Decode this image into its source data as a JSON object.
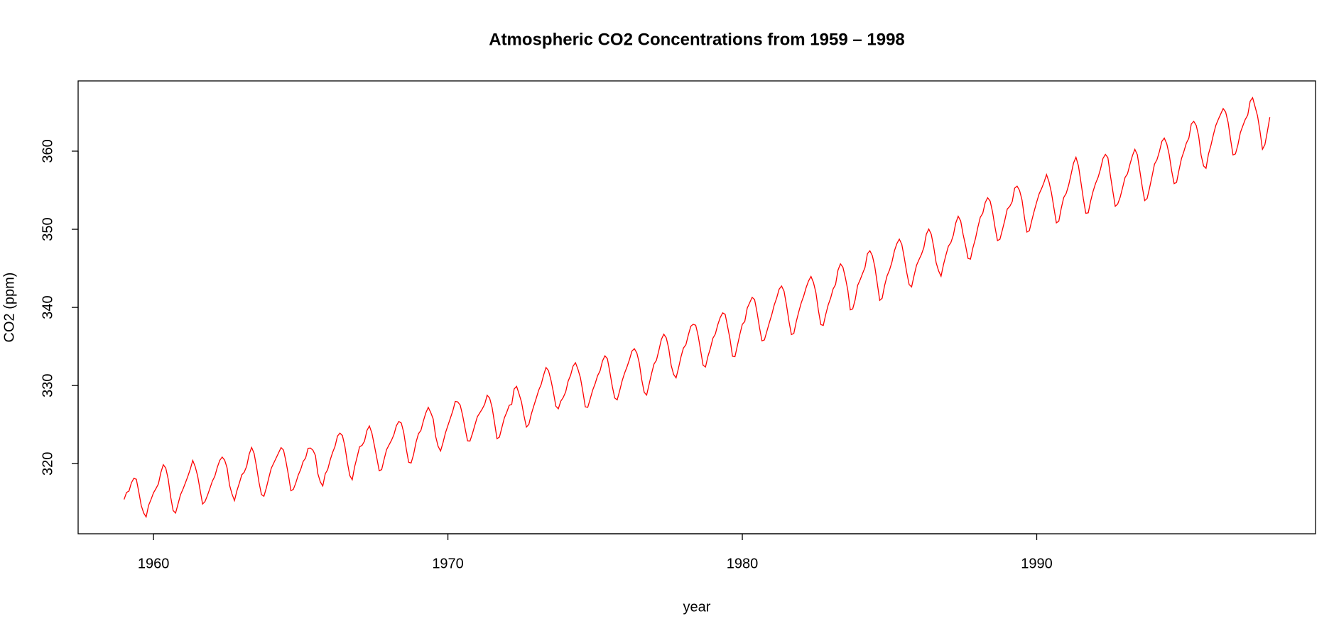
{
  "chart_data": {
    "type": "line",
    "title": "Atmospheric CO2 Concentrations from 1959 – 1998",
    "x_label": "year",
    "y_label": "CO2 (ppm)",
    "color": "#ff0000",
    "xlim": [
      1957.44,
      1999.47
    ],
    "xticks": [
      1960,
      1970,
      1980,
      1990
    ],
    "ylim": [
      311.03,
      368.99
    ],
    "yticks": [
      320,
      330,
      340,
      350,
      360
    ],
    "x": [
      1959.0,
      1959.083,
      1959.167,
      1959.25,
      1959.333,
      1959.417,
      1959.5,
      1959.583,
      1959.667,
      1959.75,
      1959.833,
      1959.917,
      1960.0,
      1960.083,
      1960.167,
      1960.25,
      1960.333,
      1960.417,
      1960.5,
      1960.583,
      1960.667,
      1960.75,
      1960.833,
      1960.917,
      1961.0,
      1961.083,
      1961.167,
      1961.25,
      1961.333,
      1961.417,
      1961.5,
      1961.583,
      1961.667,
      1961.75,
      1961.833,
      1961.917,
      1962.0,
      1962.083,
      1962.167,
      1962.25,
      1962.333,
      1962.417,
      1962.5,
      1962.583,
      1962.667,
      1962.75,
      1962.833,
      1962.917,
      1963.0,
      1963.083,
      1963.167,
      1963.25,
      1963.333,
      1963.417,
      1963.5,
      1963.583,
      1963.667,
      1963.75,
      1963.833,
      1963.917,
      1964.0,
      1964.083,
      1964.167,
      1964.25,
      1964.333,
      1964.417,
      1964.5,
      1964.583,
      1964.667,
      1964.75,
      1964.833,
      1964.917,
      1965.0,
      1965.083,
      1965.167,
      1965.25,
      1965.333,
      1965.417,
      1965.5,
      1965.583,
      1965.667,
      1965.75,
      1965.833,
      1965.917,
      1966.0,
      1966.083,
      1966.167,
      1966.25,
      1966.333,
      1966.417,
      1966.5,
      1966.583,
      1966.667,
      1966.75,
      1966.833,
      1966.917,
      1967.0,
      1967.083,
      1967.167,
      1967.25,
      1967.333,
      1967.417,
      1967.5,
      1967.583,
      1967.667,
      1967.75,
      1967.833,
      1967.917,
      1968.0,
      1968.083,
      1968.167,
      1968.25,
      1968.333,
      1968.417,
      1968.5,
      1968.583,
      1968.667,
      1968.75,
      1968.833,
      1968.917,
      1969.0,
      1969.083,
      1969.167,
      1969.25,
      1969.333,
      1969.417,
      1969.5,
      1969.583,
      1969.667,
      1969.75,
      1969.833,
      1969.917,
      1970.0,
      1970.083,
      1970.167,
      1970.25,
      1970.333,
      1970.417,
      1970.5,
      1970.583,
      1970.667,
      1970.75,
      1970.833,
      1970.917,
      1971.0,
      1971.083,
      1971.167,
      1971.25,
      1971.333,
      1971.417,
      1971.5,
      1971.583,
      1971.667,
      1971.75,
      1971.833,
      1971.917,
      1972.0,
      1972.083,
      1972.167,
      1972.25,
      1972.333,
      1972.417,
      1972.5,
      1972.583,
      1972.667,
      1972.75,
      1972.833,
      1972.917,
      1973.0,
      1973.083,
      1973.167,
      1973.25,
      1973.333,
      1973.417,
      1973.5,
      1973.583,
      1973.667,
      1973.75,
      1973.833,
      1973.917,
      1974.0,
      1974.083,
      1974.167,
      1974.25,
      1974.333,
      1974.417,
      1974.5,
      1974.583,
      1974.667,
      1974.75,
      1974.833,
      1974.917,
      1975.0,
      1975.083,
      1975.167,
      1975.25,
      1975.333,
      1975.417,
      1975.5,
      1975.583,
      1975.667,
      1975.75,
      1975.833,
      1975.917,
      1976.0,
      1976.083,
      1976.167,
      1976.25,
      1976.333,
      1976.417,
      1976.5,
      1976.583,
      1976.667,
      1976.75,
      1976.833,
      1976.917,
      1977.0,
      1977.083,
      1977.167,
      1977.25,
      1977.333,
      1977.417,
      1977.5,
      1977.583,
      1977.667,
      1977.75,
      1977.833,
      1977.917,
      1978.0,
      1978.083,
      1978.167,
      1978.25,
      1978.333,
      1978.417,
      1978.5,
      1978.583,
      1978.667,
      1978.75,
      1978.833,
      1978.917,
      1979.0,
      1979.083,
      1979.167,
      1979.25,
      1979.333,
      1979.417,
      1979.5,
      1979.583,
      1979.667,
      1979.75,
      1979.833,
      1979.917,
      1980.0,
      1980.083,
      1980.167,
      1980.25,
      1980.333,
      1980.417,
      1980.5,
      1980.583,
      1980.667,
      1980.75,
      1980.833,
      1980.917,
      1981.0,
      1981.083,
      1981.167,
      1981.25,
      1981.333,
      1981.417,
      1981.5,
      1981.583,
      1981.667,
      1981.75,
      1981.833,
      1981.917,
      1982.0,
      1982.083,
      1982.167,
      1982.25,
      1982.333,
      1982.417,
      1982.5,
      1982.583,
      1982.667,
      1982.75,
      1982.833,
      1982.917,
      1983.0,
      1983.083,
      1983.167,
      1983.25,
      1983.333,
      1983.417,
      1983.5,
      1983.583,
      1983.667,
      1983.75,
      1983.833,
      1983.917,
      1984.0,
      1984.083,
      1984.167,
      1984.25,
      1984.333,
      1984.417,
      1984.5,
      1984.583,
      1984.667,
      1984.75,
      1984.833,
      1984.917,
      1985.0,
      1985.083,
      1985.167,
      1985.25,
      1985.333,
      1985.417,
      1985.5,
      1985.583,
      1985.667,
      1985.75,
      1985.833,
      1985.917,
      1986.0,
      1986.083,
      1986.167,
      1986.25,
      1986.333,
      1986.417,
      1986.5,
      1986.583,
      1986.667,
      1986.75,
      1986.833,
      1986.917,
      1987.0,
      1987.083,
      1987.167,
      1987.25,
      1987.333,
      1987.417,
      1987.5,
      1987.583,
      1987.667,
      1987.75,
      1987.833,
      1987.917,
      1988.0,
      1988.083,
      1988.167,
      1988.25,
      1988.333,
      1988.417,
      1988.5,
      1988.583,
      1988.667,
      1988.75,
      1988.833,
      1988.917,
      1989.0,
      1989.083,
      1989.167,
      1989.25,
      1989.333,
      1989.417,
      1989.5,
      1989.583,
      1989.667,
      1989.75,
      1989.833,
      1989.917,
      1990.0,
      1990.083,
      1990.167,
      1990.25,
      1990.333,
      1990.417,
      1990.5,
      1990.583,
      1990.667,
      1990.75,
      1990.833,
      1990.917,
      1991.0,
      1991.083,
      1991.167,
      1991.25,
      1991.333,
      1991.417,
      1991.5,
      1991.583,
      1991.667,
      1991.75,
      1991.833,
      1991.917,
      1992.0,
      1992.083,
      1992.167,
      1992.25,
      1992.333,
      1992.417,
      1992.5,
      1992.583,
      1992.667,
      1992.75,
      1992.833,
      1992.917,
      1993.0,
      1993.083,
      1993.167,
      1993.25,
      1993.333,
      1993.417,
      1993.5,
      1993.583,
      1993.667,
      1993.75,
      1993.833,
      1993.917,
      1994.0,
      1994.083,
      1994.167,
      1994.25,
      1994.333,
      1994.417,
      1994.5,
      1994.583,
      1994.667,
      1994.75,
      1994.833,
      1994.917,
      1995.0,
      1995.083,
      1995.167,
      1995.25,
      1995.333,
      1995.417,
      1995.5,
      1995.583,
      1995.667,
      1995.75,
      1995.833,
      1995.917,
      1996.0,
      1996.083,
      1996.167,
      1996.25,
      1996.333,
      1996.417,
      1996.5,
      1996.583,
      1996.667,
      1996.75,
      1996.833,
      1996.917,
      1997.0,
      1997.083,
      1997.167,
      1997.25,
      1997.333,
      1997.417,
      1997.5,
      1997.583,
      1997.667,
      1997.75,
      1997.833,
      1997.917
    ],
    "values": [
      315.42,
      316.31,
      316.5,
      317.56,
      318.13,
      318.0,
      316.39,
      314.65,
      313.68,
      313.18,
      314.66,
      315.43,
      316.27,
      316.81,
      317.42,
      318.87,
      319.87,
      319.43,
      318.01,
      315.74,
      314.0,
      313.68,
      314.84,
      316.03,
      316.73,
      317.54,
      318.38,
      319.31,
      320.42,
      319.61,
      318.42,
      316.63,
      314.83,
      315.16,
      315.94,
      316.85,
      317.78,
      318.4,
      319.53,
      320.42,
      320.85,
      320.45,
      319.45,
      317.25,
      316.11,
      315.27,
      316.53,
      317.53,
      318.58,
      318.92,
      319.7,
      321.22,
      322.08,
      321.31,
      319.58,
      317.61,
      316.05,
      315.83,
      316.91,
      318.2,
      319.41,
      320.07,
      320.74,
      321.4,
      322.06,
      321.73,
      320.27,
      318.54,
      316.54,
      316.71,
      317.53,
      318.55,
      319.27,
      320.28,
      320.73,
      321.97,
      322.0,
      321.71,
      321.05,
      318.71,
      317.66,
      317.14,
      318.7,
      319.25,
      320.46,
      321.43,
      322.23,
      323.54,
      323.91,
      323.59,
      322.24,
      320.2,
      318.48,
      317.94,
      319.63,
      320.87,
      322.17,
      322.34,
      322.88,
      324.25,
      324.83,
      323.93,
      322.38,
      320.76,
      319.1,
      319.24,
      320.56,
      321.8,
      322.4,
      322.99,
      323.73,
      324.86,
      325.4,
      325.2,
      323.98,
      321.95,
      320.18,
      320.09,
      321.16,
      322.74,
      323.83,
      324.26,
      325.47,
      326.5,
      327.21,
      326.54,
      325.72,
      323.5,
      322.22,
      321.62,
      322.69,
      323.95,
      324.89,
      325.82,
      326.77,
      327.97,
      327.91,
      327.5,
      326.18,
      324.53,
      322.93,
      322.9,
      323.85,
      324.96,
      326.01,
      326.51,
      327.01,
      327.62,
      328.76,
      328.4,
      327.2,
      325.27,
      323.2,
      323.4,
      324.63,
      325.85,
      326.6,
      327.47,
      327.58,
      329.56,
      329.9,
      328.92,
      327.88,
      326.16,
      324.68,
      325.04,
      326.34,
      327.39,
      328.37,
      329.4,
      330.14,
      331.33,
      332.31,
      331.9,
      330.7,
      329.15,
      327.35,
      327.02,
      327.99,
      328.48,
      329.18,
      330.55,
      331.32,
      332.48,
      332.92,
      332.08,
      331.01,
      329.23,
      327.27,
      327.21,
      328.29,
      329.41,
      330.23,
      331.25,
      331.87,
      333.14,
      333.8,
      333.43,
      331.73,
      329.9,
      328.4,
      328.17,
      329.32,
      330.59,
      331.58,
      332.39,
      333.33,
      334.41,
      334.71,
      334.17,
      332.89,
      330.77,
      329.14,
      328.78,
      330.14,
      331.52,
      332.75,
      333.24,
      334.53,
      335.9,
      336.57,
      336.1,
      334.76,
      332.59,
      331.42,
      330.98,
      332.24,
      333.68,
      334.8,
      335.22,
      336.47,
      337.59,
      337.84,
      337.72,
      336.37,
      334.51,
      332.6,
      332.38,
      333.75,
      334.78,
      336.05,
      336.59,
      337.79,
      338.71,
      339.3,
      339.12,
      337.56,
      335.92,
      333.75,
      333.7,
      335.12,
      336.56,
      337.84,
      338.19,
      339.91,
      340.6,
      341.29,
      341.0,
      339.39,
      337.43,
      335.72,
      335.84,
      336.93,
      338.04,
      339.06,
      340.3,
      341.21,
      342.33,
      342.74,
      342.08,
      340.32,
      338.26,
      336.52,
      336.68,
      338.19,
      339.44,
      340.57,
      341.44,
      342.53,
      343.39,
      343.96,
      343.18,
      341.88,
      339.65,
      337.81,
      337.69,
      339.09,
      340.32,
      341.2,
      342.35,
      342.93,
      344.77,
      345.58,
      345.14,
      343.81,
      342.21,
      339.69,
      339.82,
      340.98,
      342.82,
      343.52,
      344.33,
      345.11,
      346.88,
      347.25,
      346.62,
      345.22,
      343.11,
      340.9,
      341.18,
      342.8,
      344.04,
      344.79,
      345.82,
      347.25,
      348.17,
      348.74,
      348.07,
      346.38,
      344.51,
      342.92,
      342.62,
      344.06,
      345.38,
      346.11,
      346.78,
      347.68,
      349.37,
      350.03,
      349.37,
      347.76,
      345.73,
      344.68,
      343.99,
      345.48,
      346.72,
      347.84,
      348.29,
      349.23,
      350.8,
      351.66,
      351.07,
      349.33,
      347.92,
      346.27,
      346.18,
      347.64,
      348.78,
      350.25,
      351.54,
      352.05,
      353.41,
      354.04,
      353.62,
      352.22,
      350.27,
      348.55,
      348.72,
      349.91,
      351.18,
      352.6,
      352.92,
      353.53,
      355.26,
      355.52,
      354.97,
      353.75,
      351.52,
      349.64,
      349.83,
      351.14,
      352.37,
      353.5,
      354.55,
      355.23,
      356.04,
      357.0,
      356.07,
      354.67,
      352.76,
      350.82,
      351.04,
      352.69,
      354.07,
      354.59,
      355.63,
      357.03,
      358.48,
      359.22,
      358.12,
      356.06,
      353.92,
      352.05,
      352.11,
      353.64,
      354.89,
      355.88,
      356.63,
      357.72,
      359.07,
      359.58,
      359.17,
      356.94,
      354.92,
      352.94,
      353.23,
      354.09,
      355.33,
      356.63,
      357.1,
      358.32,
      359.41,
      360.23,
      359.55,
      357.53,
      355.48,
      353.67,
      353.95,
      355.3,
      356.78,
      358.34,
      358.89,
      359.95,
      361.25,
      361.67,
      360.94,
      359.55,
      357.49,
      355.84,
      356.0,
      357.59,
      359.05,
      359.98,
      361.03,
      361.66,
      363.48,
      363.82,
      363.3,
      361.94,
      359.5,
      358.11,
      357.8,
      359.61,
      360.74,
      362.09,
      363.29,
      364.06,
      364.76,
      365.45,
      365.01,
      363.7,
      361.54,
      359.51,
      359.65,
      360.8,
      362.38,
      363.23,
      364.06,
      364.61,
      366.4,
      366.84,
      365.68,
      364.52,
      362.57,
      360.24,
      360.83,
      362.49,
      364.34
    ]
  }
}
